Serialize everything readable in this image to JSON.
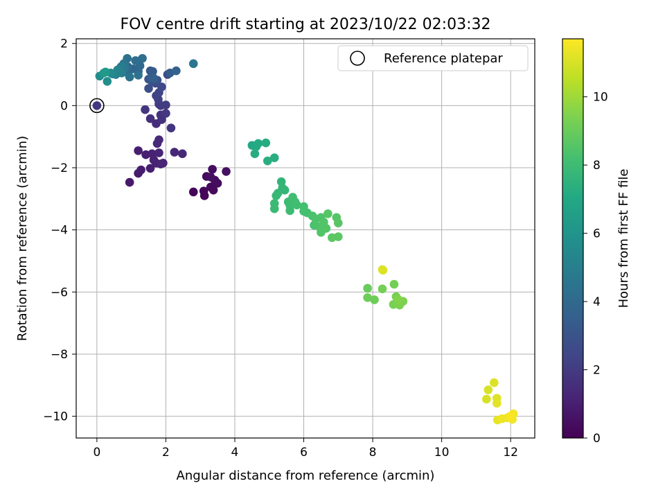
{
  "chart_data": {
    "type": "scatter",
    "title": "FOV centre drift starting at 2023/10/22 02:03:32",
    "xlabel": "Angular distance from reference (arcmin)",
    "ylabel": "Rotation from reference (arcmin)",
    "xlim": [
      -0.6,
      12.7
    ],
    "ylim": [
      -10.7,
      2.15
    ],
    "xticks": [
      0,
      2,
      4,
      6,
      8,
      10,
      12
    ],
    "yticks": [
      2,
      0,
      -2,
      -4,
      -6,
      -8,
      -10
    ],
    "grid": true,
    "legend": {
      "position": "top-right",
      "entries": [
        {
          "label": "Reference platepar",
          "marker": "hollow-circle"
        }
      ]
    },
    "reference_point": {
      "x": 0,
      "y": 0
    },
    "colorbar": {
      "label": "Hours from first FF file",
      "range": [
        0,
        11.7
      ],
      "ticks": [
        0,
        2,
        4,
        6,
        8,
        10
      ],
      "colormap": "viridis"
    },
    "points": [
      {
        "x": 2.8,
        "y": -2.78,
        "h": 0.1
      },
      {
        "x": 3.1,
        "y": -2.75,
        "h": 0.2
      },
      {
        "x": 3.12,
        "y": -2.9,
        "h": 0.2
      },
      {
        "x": 3.18,
        "y": -2.28,
        "h": 0.3
      },
      {
        "x": 3.3,
        "y": -2.62,
        "h": 0.3
      },
      {
        "x": 3.38,
        "y": -2.72,
        "h": 0.3
      },
      {
        "x": 3.35,
        "y": -2.05,
        "h": 0.4
      },
      {
        "x": 3.42,
        "y": -2.4,
        "h": 0.4
      },
      {
        "x": 3.5,
        "y": -2.5,
        "h": 0.4
      },
      {
        "x": 3.75,
        "y": -2.12,
        "h": 0.5
      },
      {
        "x": 3.3,
        "y": -2.3,
        "h": 0.5
      },
      {
        "x": 0.95,
        "y": -2.47,
        "h": 0.8
      },
      {
        "x": 1.2,
        "y": -2.18,
        "h": 0.9
      },
      {
        "x": 1.28,
        "y": -2.07,
        "h": 0.9
      },
      {
        "x": 1.2,
        "y": -1.45,
        "h": 1.0
      },
      {
        "x": 1.42,
        "y": -1.58,
        "h": 1.0
      },
      {
        "x": 1.55,
        "y": -2.02,
        "h": 1.0
      },
      {
        "x": 1.6,
        "y": -1.55,
        "h": 1.1
      },
      {
        "x": 1.65,
        "y": -1.75,
        "h": 1.1
      },
      {
        "x": 1.72,
        "y": -1.85,
        "h": 1.1
      },
      {
        "x": 1.8,
        "y": -1.52,
        "h": 1.2
      },
      {
        "x": 1.85,
        "y": -1.88,
        "h": 1.2
      },
      {
        "x": 1.92,
        "y": -1.85,
        "h": 1.2
      },
      {
        "x": 2.25,
        "y": -1.5,
        "h": 1.3
      },
      {
        "x": 2.48,
        "y": -1.55,
        "h": 1.3
      },
      {
        "x": 1.75,
        "y": -1.22,
        "h": 1.4
      },
      {
        "x": 1.8,
        "y": -1.1,
        "h": 1.4
      },
      {
        "x": 1.72,
        "y": -0.58,
        "h": 1.5
      },
      {
        "x": 1.55,
        "y": -0.42,
        "h": 1.6
      },
      {
        "x": 1.88,
        "y": -0.45,
        "h": 1.7
      },
      {
        "x": 1.85,
        "y": -0.3,
        "h": 1.7
      },
      {
        "x": 2.15,
        "y": -0.72,
        "h": 1.8
      },
      {
        "x": 1.4,
        "y": -0.13,
        "h": 1.8
      },
      {
        "x": 2.0,
        "y": -0.25,
        "h": 1.9
      },
      {
        "x": 1.8,
        "y": 0.05,
        "h": 2.0
      },
      {
        "x": 1.85,
        "y": 0.0,
        "h": 2.0
      },
      {
        "x": 2.0,
        "y": 0.02,
        "h": 2.1
      },
      {
        "x": 1.78,
        "y": 0.2,
        "h": 2.2
      },
      {
        "x": 1.72,
        "y": 0.32,
        "h": 2.3
      },
      {
        "x": 1.8,
        "y": 0.42,
        "h": 2.4
      },
      {
        "x": 1.88,
        "y": 0.6,
        "h": 2.5
      },
      {
        "x": 1.7,
        "y": 0.72,
        "h": 2.6
      },
      {
        "x": 2.05,
        "y": 1.0,
        "h": 2.6
      },
      {
        "x": 1.5,
        "y": 0.55,
        "h": 2.8
      },
      {
        "x": 1.6,
        "y": 0.78,
        "h": 2.9
      },
      {
        "x": 1.75,
        "y": 0.82,
        "h": 3.0
      },
      {
        "x": 1.5,
        "y": 0.85,
        "h": 3.1
      },
      {
        "x": 1.55,
        "y": 1.12,
        "h": 3.2
      },
      {
        "x": 1.62,
        "y": 1.1,
        "h": 3.3
      },
      {
        "x": 1.58,
        "y": 0.92,
        "h": 3.4
      },
      {
        "x": 1.65,
        "y": 0.88,
        "h": 3.5
      },
      {
        "x": 2.12,
        "y": 1.05,
        "h": 3.4
      },
      {
        "x": 2.3,
        "y": 1.12,
        "h": 3.6
      },
      {
        "x": 1.2,
        "y": 1.1,
        "h": 3.8
      },
      {
        "x": 1.05,
        "y": 1.18,
        "h": 3.9
      },
      {
        "x": 0.9,
        "y": 1.05,
        "h": 4.0
      },
      {
        "x": 1.25,
        "y": 1.28,
        "h": 4.0
      },
      {
        "x": 0.9,
        "y": 1.25,
        "h": 4.1
      },
      {
        "x": 1.32,
        "y": 1.52,
        "h": 4.2
      },
      {
        "x": 1.12,
        "y": 1.45,
        "h": 4.2
      },
      {
        "x": 0.88,
        "y": 1.52,
        "h": 4.3
      },
      {
        "x": 1.2,
        "y": 0.98,
        "h": 4.4
      },
      {
        "x": 0.95,
        "y": 0.92,
        "h": 4.5
      },
      {
        "x": 0.78,
        "y": 1.35,
        "h": 4.6
      },
      {
        "x": 0.8,
        "y": 1.2,
        "h": 4.7
      },
      {
        "x": 2.8,
        "y": 1.35,
        "h": 4.6
      },
      {
        "x": 0.7,
        "y": 1.25,
        "h": 4.8
      },
      {
        "x": 0.62,
        "y": 1.12,
        "h": 4.9
      },
      {
        "x": 0.72,
        "y": 1.05,
        "h": 5.0
      },
      {
        "x": 0.55,
        "y": 1.0,
        "h": 5.1
      },
      {
        "x": 0.6,
        "y": 1.15,
        "h": 5.2
      },
      {
        "x": 0.45,
        "y": 1.02,
        "h": 5.4
      },
      {
        "x": 0.4,
        "y": 1.05,
        "h": 5.5
      },
      {
        "x": 0.08,
        "y": 0.95,
        "h": 5.6
      },
      {
        "x": 0.3,
        "y": 0.78,
        "h": 5.7
      },
      {
        "x": 0.2,
        "y": 1.05,
        "h": 6.2
      },
      {
        "x": 0.25,
        "y": 1.08,
        "h": 6.3
      },
      {
        "x": 4.5,
        "y": -1.28,
        "h": 7.0
      },
      {
        "x": 4.68,
        "y": -1.22,
        "h": 7.1
      },
      {
        "x": 4.62,
        "y": -1.32,
        "h": 7.1
      },
      {
        "x": 4.58,
        "y": -1.55,
        "h": 7.2
      },
      {
        "x": 4.9,
        "y": -1.2,
        "h": 7.2
      },
      {
        "x": 4.95,
        "y": -1.78,
        "h": 7.3
      },
      {
        "x": 5.15,
        "y": -1.68,
        "h": 7.3
      },
      {
        "x": 5.35,
        "y": -2.45,
        "h": 7.6
      },
      {
        "x": 5.38,
        "y": -2.65,
        "h": 7.7
      },
      {
        "x": 5.45,
        "y": -2.72,
        "h": 7.7
      },
      {
        "x": 5.25,
        "y": -2.82,
        "h": 7.8
      },
      {
        "x": 5.2,
        "y": -2.9,
        "h": 7.8
      },
      {
        "x": 5.15,
        "y": -3.15,
        "h": 7.9
      },
      {
        "x": 5.15,
        "y": -3.32,
        "h": 7.9
      },
      {
        "x": 5.55,
        "y": -3.1,
        "h": 8.0
      },
      {
        "x": 5.6,
        "y": -3.22,
        "h": 8.0
      },
      {
        "x": 5.6,
        "y": -3.38,
        "h": 8.0
      },
      {
        "x": 5.68,
        "y": -2.95,
        "h": 8.1
      },
      {
        "x": 5.75,
        "y": -3.1,
        "h": 8.1
      },
      {
        "x": 5.8,
        "y": -3.2,
        "h": 8.1
      },
      {
        "x": 6.0,
        "y": -3.25,
        "h": 8.2
      },
      {
        "x": 6.0,
        "y": -3.4,
        "h": 8.2
      },
      {
        "x": 6.1,
        "y": -3.45,
        "h": 8.2
      },
      {
        "x": 6.25,
        "y": -3.55,
        "h": 8.3
      },
      {
        "x": 6.3,
        "y": -3.85,
        "h": 8.3
      },
      {
        "x": 6.35,
        "y": -3.65,
        "h": 8.4
      },
      {
        "x": 6.45,
        "y": -3.9,
        "h": 8.4
      },
      {
        "x": 6.5,
        "y": -3.6,
        "h": 8.4
      },
      {
        "x": 6.5,
        "y": -4.08,
        "h": 8.5
      },
      {
        "x": 6.58,
        "y": -3.75,
        "h": 8.5
      },
      {
        "x": 6.65,
        "y": -3.95,
        "h": 8.5
      },
      {
        "x": 6.55,
        "y": -3.98,
        "h": 8.5
      },
      {
        "x": 6.7,
        "y": -3.48,
        "h": 8.6
      },
      {
        "x": 6.95,
        "y": -3.6,
        "h": 8.6
      },
      {
        "x": 7.0,
        "y": -3.78,
        "h": 8.6
      },
      {
        "x": 6.82,
        "y": -4.25,
        "h": 8.7
      },
      {
        "x": 7.0,
        "y": -4.22,
        "h": 8.7
      },
      {
        "x": 7.85,
        "y": -5.88,
        "h": 9.0
      },
      {
        "x": 7.85,
        "y": -6.18,
        "h": 9.1
      },
      {
        "x": 8.05,
        "y": -6.25,
        "h": 9.1
      },
      {
        "x": 8.28,
        "y": -5.9,
        "h": 9.2
      },
      {
        "x": 8.62,
        "y": -5.75,
        "h": 9.2
      },
      {
        "x": 8.68,
        "y": -6.15,
        "h": 9.3
      },
      {
        "x": 8.6,
        "y": -6.4,
        "h": 9.3
      },
      {
        "x": 8.72,
        "y": -6.38,
        "h": 9.4
      },
      {
        "x": 8.78,
        "y": -6.42,
        "h": 9.4
      },
      {
        "x": 8.88,
        "y": -6.3,
        "h": 9.4
      },
      {
        "x": 8.75,
        "y": -6.25,
        "h": 9.5
      },
      {
        "x": 8.28,
        "y": -5.28,
        "h": 11.0
      },
      {
        "x": 8.3,
        "y": -5.3,
        "h": 11.1
      },
      {
        "x": 11.3,
        "y": -9.45,
        "h": 11.0
      },
      {
        "x": 11.35,
        "y": -9.15,
        "h": 11.0
      },
      {
        "x": 11.52,
        "y": -8.92,
        "h": 11.1
      },
      {
        "x": 11.6,
        "y": -9.42,
        "h": 11.1
      },
      {
        "x": 11.6,
        "y": -9.58,
        "h": 11.2
      },
      {
        "x": 11.62,
        "y": -10.12,
        "h": 11.3
      },
      {
        "x": 11.75,
        "y": -10.08,
        "h": 11.4
      },
      {
        "x": 11.9,
        "y": -10.05,
        "h": 11.4
      },
      {
        "x": 12.05,
        "y": -10.1,
        "h": 11.5
      },
      {
        "x": 12.08,
        "y": -9.92,
        "h": 11.5
      },
      {
        "x": 11.98,
        "y": -10.0,
        "h": 11.6
      }
    ]
  }
}
